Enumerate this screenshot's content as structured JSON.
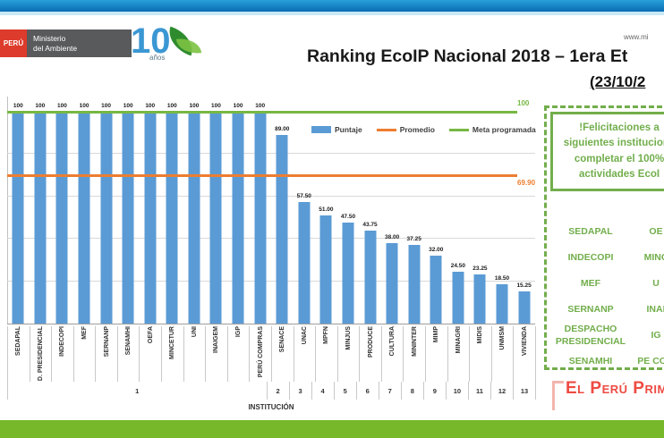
{
  "header": {
    "peru_logo": {
      "country": "PERÚ",
      "ministry_line1": "Ministerio",
      "ministry_line2": "del Ambiente"
    },
    "anniversary_logo": {
      "number": "10",
      "text": "años"
    },
    "title": "Ranking EcoIP Nacional 2018 – 1era Et",
    "subtitle": "(23/10/2",
    "website": "www.mi"
  },
  "chart_data": {
    "type": "bar",
    "title": "Ranking EcoIP Nacional 2018 – 1era Et",
    "xlabel": "INSTITUCIÓN",
    "ylabel": "",
    "ylim": [
      0,
      100
    ],
    "grid": true,
    "gridlines": [
      20,
      40,
      60,
      80
    ],
    "legend_position": "top",
    "categories": [
      "SEDAPAL",
      "D. PRESIDENCIAL",
      "INDECOPI",
      "MEF",
      "SERNANP",
      "SENAMHI",
      "OEFA",
      "MINCETUR",
      "UNI",
      "INAIGEM",
      "IGP",
      "PERÚ COMPRAS",
      "SENACE",
      "UNAC",
      "MPFN",
      "MINJUS",
      "PRODUCE",
      "CULTURA",
      "MININTER",
      "MIMP",
      "MINAGRI",
      "MIDIS",
      "UNMSM",
      "VIVIENDA"
    ],
    "values": [
      100,
      100,
      100,
      100,
      100,
      100,
      100,
      100,
      100,
      100,
      100,
      100,
      89,
      57.5,
      51,
      47.5,
      43.75,
      38,
      37.25,
      32,
      24.5,
      23.25,
      18.5,
      15.25
    ],
    "value_labels": [
      "100",
      "100",
      "100",
      "100",
      "100",
      "100",
      "100",
      "100",
      "100",
      "100",
      "100",
      "100",
      "89.00",
      "57.50",
      "51.00",
      "47.50",
      "43.75",
      "38.00",
      "37.25",
      "32.00",
      "24.50",
      "23.25",
      "18.50",
      "15.25"
    ],
    "ranks": [
      {
        "label": "1",
        "span": 12
      },
      {
        "label": "2",
        "span": 1
      },
      {
        "label": "3",
        "span": 1
      },
      {
        "label": "4",
        "span": 1
      },
      {
        "label": "5",
        "span": 1
      },
      {
        "label": "6",
        "span": 1
      },
      {
        "label": "7",
        "span": 1
      },
      {
        "label": "8",
        "span": 1
      },
      {
        "label": "9",
        "span": 1
      },
      {
        "label": "10",
        "span": 1
      },
      {
        "label": "11",
        "span": 1
      },
      {
        "label": "12",
        "span": 1
      },
      {
        "label": "13",
        "span": 1
      }
    ],
    "promedio": {
      "value": 69.9,
      "label": "69.90"
    },
    "meta_programada": {
      "value": 100,
      "label": "100"
    },
    "legend": [
      {
        "label": "Puntaje",
        "type": "bar"
      },
      {
        "label": "Promedio",
        "type": "line"
      },
      {
        "label": "Meta programada",
        "type": "line"
      }
    ],
    "colors": {
      "bar": "#5b9bd5",
      "promedio": "#ed7d31",
      "meta": "#77b843"
    }
  },
  "panel": {
    "message_lines": [
      "!Felicitaciones a",
      "siguientes institucione",
      "completar el 100%",
      "actividades EcoI"
    ],
    "institutions": [
      {
        "left": "SEDAPAL",
        "right": "OE"
      },
      {
        "left": "INDECOPI",
        "right": "MINC"
      },
      {
        "left": "MEF",
        "right": "U"
      },
      {
        "left": "SERNANP",
        "right": "INAI"
      },
      {
        "left": "DESPACHO PRESIDENCIAL",
        "right": "IG"
      },
      {
        "left": "SENAMHI",
        "right": "PE COM"
      }
    ],
    "border_color": "#72ae4c"
  },
  "footer": {
    "logo_text": "El Perú Prim",
    "logo_color": "#ee4b43",
    "band_color": "#76b82a"
  }
}
